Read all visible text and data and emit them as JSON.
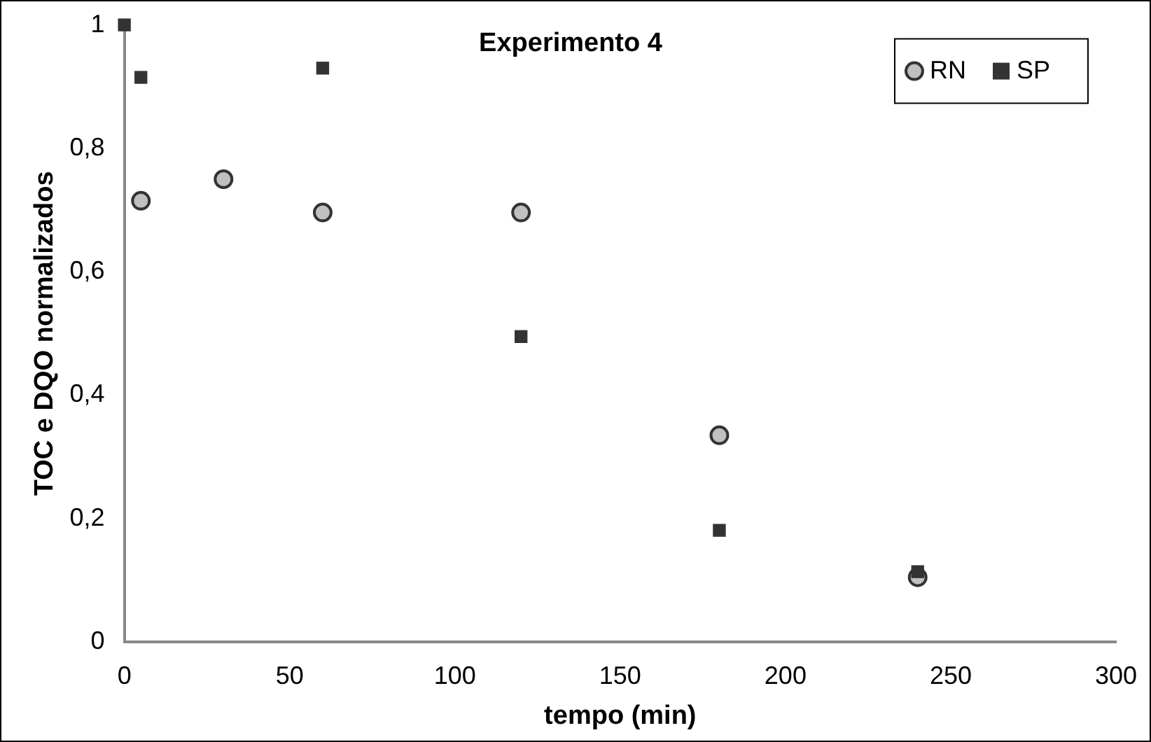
{
  "chart_data": {
    "type": "scatter",
    "title": "Experimento 4",
    "xlabel": "tempo (min)",
    "ylabel": "TOC e DQO normalizados",
    "xlim": [
      0,
      300
    ],
    "xticks": [
      0,
      50,
      100,
      150,
      200,
      250,
      300
    ],
    "ylim": [
      0,
      1
    ],
    "yticks": [
      0,
      {
        "value": 0.2,
        "label": "0,2"
      },
      {
        "value": 0.4,
        "label": "0,4"
      },
      {
        "value": 0.6,
        "label": "0,6"
      },
      {
        "value": 0.8,
        "label": "0,8"
      },
      1
    ],
    "grid": false,
    "legend": "top right",
    "series": [
      {
        "name": "RN",
        "color": "#c0c0c0",
        "marker": "circle",
        "x": [
          5,
          30,
          60,
          120,
          180,
          240
        ],
        "values": [
          0.715,
          0.75,
          0.696,
          0.696,
          0.335,
          0.105
        ]
      },
      {
        "name": "SP",
        "color": "#333333",
        "marker": "square",
        "x": [
          0,
          5,
          60,
          120,
          180,
          240
        ],
        "values": [
          1,
          0.915,
          0.93,
          0.495,
          0.181,
          0.114
        ]
      }
    ]
  }
}
